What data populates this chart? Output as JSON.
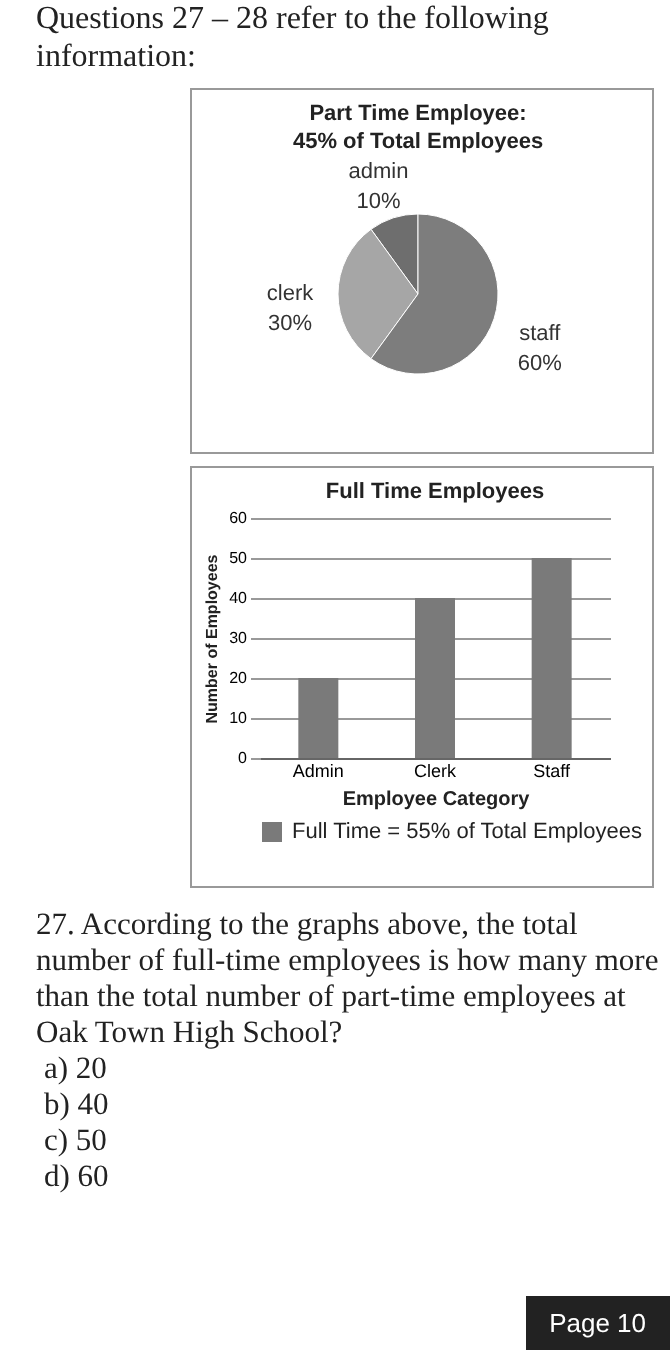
{
  "chart_data": [
    {
      "type": "other",
      "annotations": [
        "Questions 27 – 28 refer to the following information:"
      ]
    },
    {
      "type": "pie",
      "title": "Part Time Employee: 45% of Total Employees",
      "categories": [
        "admin",
        "clerk",
        "staff"
      ],
      "values": [
        10,
        30,
        60
      ],
      "value_labels": [
        "10%",
        "30%",
        "60%"
      ],
      "colors": [
        "#6e6e6e",
        "#a6a6a6",
        "#7d7d7d"
      ]
    },
    {
      "type": "bar",
      "title": "Full Time Employees",
      "xlabel": "Employee Category",
      "ylabel": "Number of Employees",
      "categories": [
        "Admin",
        "Clerk",
        "Staff"
      ],
      "series": [
        {
          "name": "Full Time = 55% of Total Employees",
          "color": "#7a7a7a",
          "values": [
            20,
            40,
            50
          ]
        }
      ],
      "ylim": [
        0,
        60
      ],
      "yticks": [
        0,
        10,
        20,
        30,
        40,
        50,
        60
      ],
      "grid": "y",
      "legend": "bottom"
    },
    {
      "type": "other",
      "annotations": [
        "27. According to the graphs above, the total number of full-time employees is how many more than the total number of part-time employees at Oak Town High School?",
        "a)  20",
        "b)  40",
        "c)  50",
        "d)  60",
        "Page  10"
      ]
    }
  ]
}
